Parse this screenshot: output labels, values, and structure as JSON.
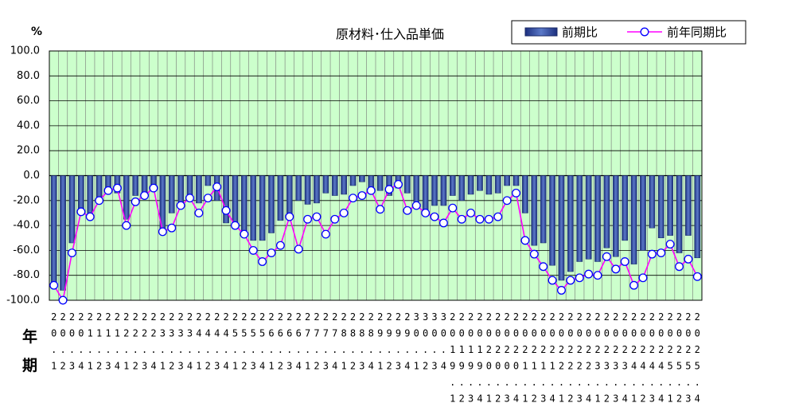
{
  "chart_data": {
    "type": "bar",
    "title": "原材料･仕入品単価",
    "ylabel": "%",
    "x_row_labels": [
      "年",
      "期"
    ],
    "categories": [
      "20.1",
      "20.2",
      "20.3",
      "20.4",
      "21.1",
      "21.2",
      "21.3",
      "21.4",
      "22.1",
      "22.2",
      "22.3",
      "22.4",
      "23.1",
      "23.2",
      "23.3",
      "23.4",
      "24.1",
      "24.2",
      "24.3",
      "24.4",
      "25.1",
      "25.2",
      "25.3",
      "25.4",
      "26.1",
      "26.2",
      "26.3",
      "26.4",
      "27.1",
      "27.2",
      "27.3",
      "27.4",
      "28.1",
      "28.2",
      "28.3",
      "28.4",
      "29.1",
      "29.2",
      "29.3",
      "29.4",
      "30.1",
      "30.2",
      "30.3",
      "30.4",
      "2019.1",
      "2019.2",
      "2019.3",
      "2019.4",
      "2020.1",
      "2020.2",
      "2020.3",
      "2020.4",
      "2021.1",
      "2021.2",
      "2021.3",
      "2021.4",
      "2022.1",
      "2022.2",
      "2022.3",
      "2022.4",
      "2023.1",
      "2023.2",
      "2023.3",
      "2023.4",
      "2024.1",
      "2024.2",
      "2024.3",
      "2024.4",
      "2025.1",
      "2025.2",
      "2025.3",
      "2025.4"
    ],
    "series": [
      {
        "name": "前期比",
        "type": "bar",
        "color": "#2b3f92",
        "values": [
          -90,
          -92,
          -54,
          -28,
          -30,
          -20,
          -12,
          -14,
          -35,
          -16,
          -18,
          -12,
          -44,
          -30,
          -24,
          -20,
          -22,
          -8,
          -20,
          -38,
          -42,
          -48,
          -52,
          -52,
          -46,
          -36,
          -32,
          -20,
          -23,
          -22,
          -14,
          -16,
          -15,
          -8,
          -5,
          -10,
          -12,
          -16,
          -10,
          -14,
          -21,
          -28,
          -24,
          -24,
          -16,
          -20,
          -15,
          -12,
          -15,
          -14,
          -8,
          -8,
          -30,
          -56,
          -54,
          -72,
          -84,
          -77,
          -69,
          -67,
          -69,
          -58,
          -65,
          -52,
          -71,
          -60,
          -42,
          -50,
          -48,
          -62,
          -48,
          -66
        ]
      },
      {
        "name": "前年同期比",
        "type": "line",
        "color": "#ff00ff",
        "marker_edge": "#0000ff",
        "values": [
          -88,
          -100,
          -62,
          -29,
          -33,
          -20,
          -12,
          -10,
          -40,
          -21,
          -16,
          -10,
          -45,
          -42,
          -24,
          -18,
          -30,
          -18,
          -9,
          -28,
          -40,
          -47,
          -60,
          -69,
          -62,
          -56,
          -33,
          -59,
          -35,
          -33,
          -47,
          -35,
          -30,
          -18,
          -16,
          -12,
          -27,
          -11,
          -7,
          -28,
          -24,
          -30,
          -33,
          -38,
          -26,
          -35,
          -30,
          -35,
          -35,
          -33,
          -20,
          -14,
          -52,
          -63,
          -73,
          -84,
          -92,
          -84,
          -82,
          -79,
          -80,
          -65,
          -75,
          -69,
          -88,
          -82,
          -63,
          -62,
          -55,
          -73,
          -67,
          -81
        ]
      }
    ],
    "ylim": [
      -100,
      100
    ],
    "yticks": [
      {
        "value": -100,
        "label": "-100.0"
      },
      {
        "value": -80,
        "label": "-80.0"
      },
      {
        "value": -60,
        "label": "-60.0"
      },
      {
        "value": -40,
        "label": "-40.0"
      },
      {
        "value": -20,
        "label": "-20.0"
      },
      {
        "value": 0,
        "label": "0.0"
      },
      {
        "value": 20,
        "label": "20.0"
      },
      {
        "value": 40,
        "label": "40.0"
      },
      {
        "value": 60,
        "label": "60.0"
      },
      {
        "value": 80,
        "label": "80.0"
      },
      {
        "value": 100,
        "label": "100.0"
      }
    ],
    "grid": true,
    "plot_background": "#ccffcc",
    "legend": "top-right"
  }
}
